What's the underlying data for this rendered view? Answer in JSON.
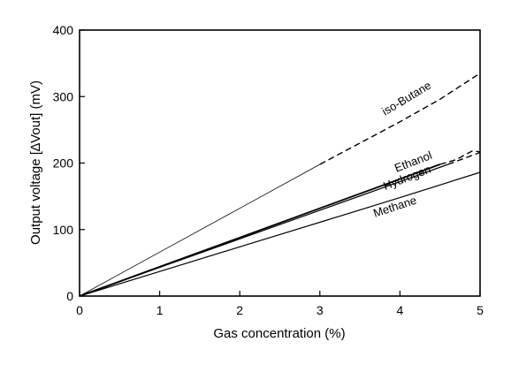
{
  "chart_data": {
    "type": "line",
    "xlabel": "Gas concentration (%)",
    "ylabel": "Output voltage [∆Vout] (mV)",
    "xlim": [
      0,
      5
    ],
    "ylim": [
      0,
      400
    ],
    "x_ticks": [
      "0",
      "1",
      "2",
      "3",
      "4",
      "5"
    ],
    "y_ticks": [
      "0",
      "100",
      "200",
      "300",
      "400"
    ],
    "grid": false,
    "legend": "inline labels",
    "series": [
      {
        "name": "iso-Butane",
        "points": [
          [
            0,
            0
          ],
          [
            1,
            66
          ],
          [
            2,
            132
          ],
          [
            3,
            198
          ],
          [
            3.5,
            230
          ],
          [
            4,
            262
          ],
          [
            4.5,
            296
          ],
          [
            5,
            335
          ]
        ],
        "solid_until": 3
      },
      {
        "name": "Ethanol",
        "points": [
          [
            0,
            0
          ],
          [
            1,
            44
          ],
          [
            2,
            88
          ],
          [
            3,
            132
          ],
          [
            4,
            176
          ],
          [
            4.5,
            198
          ],
          [
            4.7,
            205
          ],
          [
            4.9,
            218
          ],
          [
            5,
            217
          ]
        ],
        "solid_until": 4.6
      },
      {
        "name": "Hydrogen",
        "points": [
          [
            0,
            0
          ],
          [
            1,
            43
          ],
          [
            2,
            86
          ],
          [
            3,
            129
          ],
          [
            4,
            172
          ],
          [
            4.6,
            198
          ],
          [
            5,
            216
          ]
        ],
        "solid_until": 4.6
      },
      {
        "name": "Methane",
        "points": [
          [
            0,
            0
          ],
          [
            1,
            37
          ],
          [
            2,
            74
          ],
          [
            3,
            111
          ],
          [
            4,
            148
          ],
          [
            5,
            186
          ]
        ],
        "solid_until": 5
      }
    ]
  }
}
